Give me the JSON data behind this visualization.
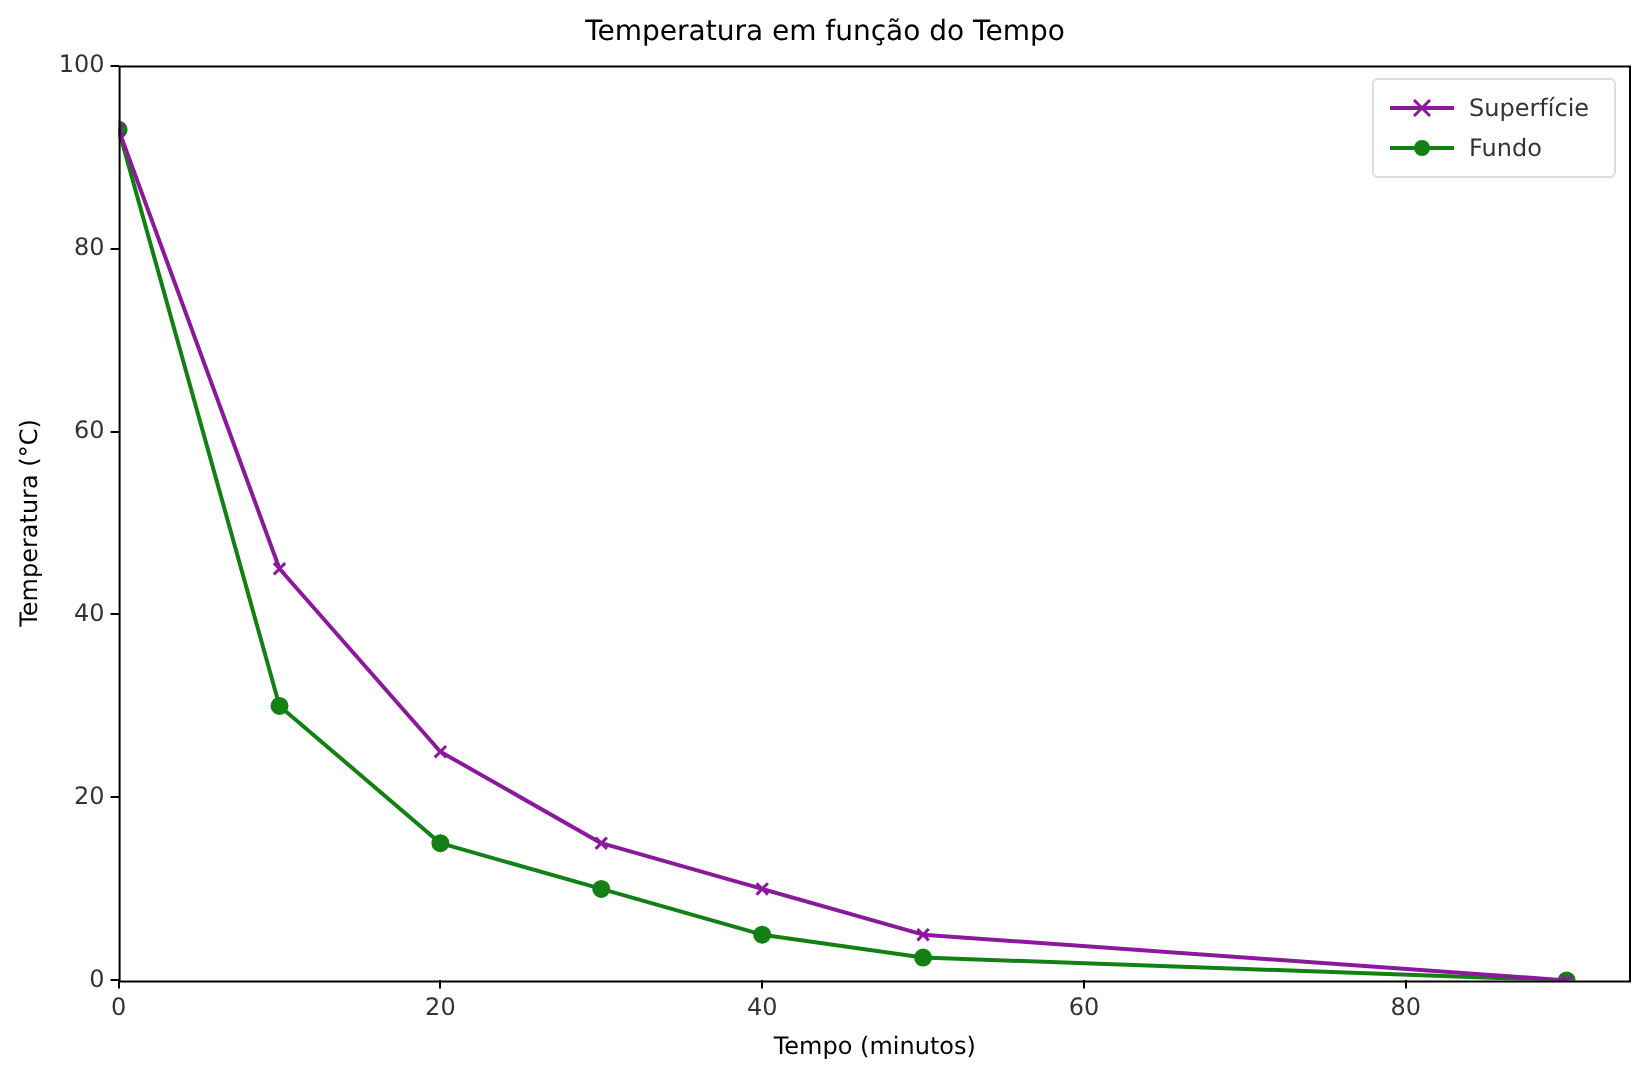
{
  "chart_data": {
    "type": "line",
    "title": "Temperatura em função do Tempo",
    "xlabel": "Tempo (minutos)",
    "ylabel": "Temperatura (°C)",
    "x": [
      0,
      10,
      20,
      30,
      40,
      50,
      90
    ],
    "series": [
      {
        "name": "Superfície",
        "color": "#8b1a9b",
        "marker": "cross",
        "values": [
          93,
          45,
          25,
          15,
          10,
          5,
          0
        ]
      },
      {
        "name": "Fundo",
        "color": "#138013",
        "marker": "circle",
        "values": [
          93,
          30,
          15,
          10,
          5,
          2.5,
          0
        ]
      }
    ],
    "xlim": [
      0,
      94
    ],
    "xticks": [
      0,
      20,
      40,
      60,
      80
    ],
    "ylim": [
      0,
      100
    ],
    "yticks": [
      0,
      20,
      40,
      60,
      80,
      100
    ],
    "grid": false,
    "legend": "top right",
    "line_style": "solid"
  }
}
